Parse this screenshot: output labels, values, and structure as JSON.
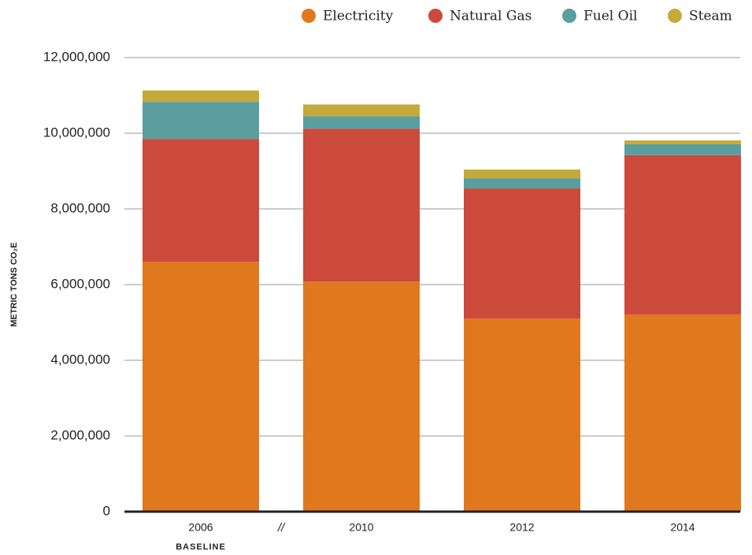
{
  "chart_data": {
    "type": "stacked_bar",
    "y_label": "METRIC TONS CO₂E",
    "categories": [
      "2006",
      "2010",
      "2012",
      "2014"
    ],
    "annotations": [
      "BASELINE",
      "//"
    ],
    "series": [
      {
        "name": "Electricity",
        "color": "#e0781e",
        "values": [
          6600000,
          6080000,
          5100000,
          5210000
        ]
      },
      {
        "name": "Natural Gas",
        "color": "#cc4a3c",
        "values": [
          3250000,
          4040000,
          3440000,
          4210000
        ]
      },
      {
        "name": "Fuel Oil",
        "color": "#5a9ea0",
        "values": [
          980000,
          330000,
          270000,
          290000
        ]
      },
      {
        "name": "Steam",
        "color": "#c4aa3a",
        "values": [
          300000,
          310000,
          230000,
          100000
        ]
      }
    ],
    "ylim": [
      0,
      12000000
    ],
    "yticks": [
      0,
      {
        "value": 2000000,
        "label": "2,000,000"
      },
      {
        "value": 4000000,
        "label": "4,000,000"
      },
      {
        "value": 6000000,
        "label": "6,000,000"
      },
      {
        "value": 8000000,
        "label": "8,000,000"
      },
      {
        "value": 10000000,
        "label": "10,000,000"
      },
      {
        "value": 12000000,
        "label": "12,000,000"
      }
    ],
    "grid": true,
    "legend": "top-right"
  }
}
